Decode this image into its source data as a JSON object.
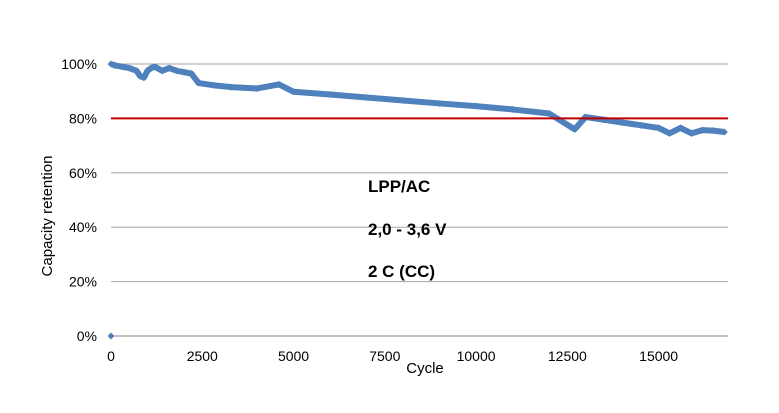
{
  "chart_data": {
    "type": "scatter",
    "xlabel": "Cycle",
    "ylabel": "Capacity retention",
    "xlim": [
      0,
      16900
    ],
    "ylim": [
      0,
      1.0
    ],
    "x_ticks": [
      0,
      2500,
      5000,
      7500,
      10000,
      12500,
      15000
    ],
    "x_tick_labels": [
      "0",
      "2500",
      "5000",
      "7500",
      "10000",
      "12500",
      "15000"
    ],
    "y_ticks": [
      0,
      0.2,
      0.4,
      0.6,
      0.8,
      1.0
    ],
    "y_tick_labels": [
      "0%",
      "20%",
      "40%",
      "60%",
      "80%",
      "100%"
    ],
    "grid": "horizontal",
    "reference_line": {
      "y": 0.8,
      "color": "#c00000"
    },
    "annotations": [
      "LPP/AC",
      "2,0 - 3,6 V",
      "2 C (CC)"
    ],
    "series": [
      {
        "color": "#4f81bd",
        "marker": "diamond",
        "points": [
          [
            0,
            0.0
          ],
          [
            0,
            1.0
          ],
          [
            100,
            0.995
          ],
          [
            300,
            0.99
          ],
          [
            500,
            0.985
          ],
          [
            700,
            0.975
          ],
          [
            800,
            0.955
          ],
          [
            900,
            0.95
          ],
          [
            1000,
            0.975
          ],
          [
            1100,
            0.985
          ],
          [
            1200,
            0.99
          ],
          [
            1400,
            0.975
          ],
          [
            1600,
            0.985
          ],
          [
            1800,
            0.975
          ],
          [
            2000,
            0.97
          ],
          [
            2200,
            0.965
          ],
          [
            2400,
            0.93
          ],
          [
            2800,
            0.922
          ],
          [
            3300,
            0.915
          ],
          [
            4000,
            0.91
          ],
          [
            4600,
            0.925
          ],
          [
            5000,
            0.898
          ],
          [
            6000,
            0.888
          ],
          [
            7000,
            0.877
          ],
          [
            8000,
            0.866
          ],
          [
            9000,
            0.855
          ],
          [
            10000,
            0.845
          ],
          [
            11000,
            0.833
          ],
          [
            12000,
            0.818
          ],
          [
            12700,
            0.76
          ],
          [
            13000,
            0.805
          ],
          [
            13500,
            0.795
          ],
          [
            14000,
            0.785
          ],
          [
            14500,
            0.775
          ],
          [
            15000,
            0.765
          ],
          [
            15300,
            0.745
          ],
          [
            15600,
            0.765
          ],
          [
            15900,
            0.745
          ],
          [
            16200,
            0.757
          ],
          [
            16500,
            0.755
          ],
          [
            16800,
            0.75
          ]
        ]
      }
    ]
  }
}
